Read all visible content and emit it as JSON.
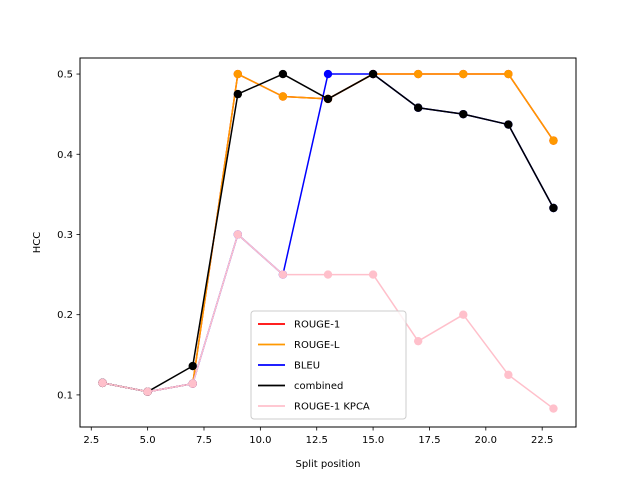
{
  "chart_data": {
    "type": "line",
    "title": "",
    "xlabel": "Split position",
    "ylabel": "HCC",
    "xlim": [
      2.0,
      24.0
    ],
    "ylim": [
      0.06,
      0.52
    ],
    "xticks": [
      2.5,
      5.0,
      7.5,
      10.0,
      12.5,
      15.0,
      17.5,
      20.0,
      22.5
    ],
    "xtick_labels": [
      "2.5",
      "5.0",
      "7.5",
      "10.0",
      "12.5",
      "15.0",
      "17.5",
      "20.0",
      "22.5"
    ],
    "yticks": [
      0.1,
      0.2,
      0.3,
      0.4,
      0.5
    ],
    "ytick_labels": [
      "0.1",
      "0.2",
      "0.3",
      "0.4",
      "0.5"
    ],
    "grid": false,
    "legend_position": "lower center",
    "x": [
      3,
      5,
      7,
      9,
      11,
      13,
      15,
      17,
      19,
      21,
      23
    ],
    "series": [
      {
        "name": "ROUGE-1",
        "color": "#ff0000",
        "values": [
          0.115,
          0.104,
          0.114,
          0.5,
          0.472,
          0.469,
          0.5,
          0.5,
          0.5,
          0.5,
          0.417
        ]
      },
      {
        "name": "ROUGE-L",
        "color": "#ff9900",
        "values": [
          0.115,
          0.104,
          0.114,
          0.5,
          0.472,
          0.469,
          0.5,
          0.5,
          0.5,
          0.5,
          0.417
        ]
      },
      {
        "name": "BLEU",
        "color": "#0000ff",
        "values": [
          0.115,
          0.104,
          0.114,
          0.3,
          0.25,
          0.5,
          0.5,
          0.458,
          0.45,
          0.437,
          0.333
        ]
      },
      {
        "name": "combined",
        "color": "#000000",
        "values": [
          0.115,
          0.104,
          0.136,
          0.475,
          0.5,
          0.469,
          0.5,
          0.458,
          0.45,
          0.437,
          0.333
        ]
      },
      {
        "name": "ROUGE-1 KPCA",
        "color": "#ffc0cb",
        "values": [
          0.115,
          0.104,
          0.114,
          0.3,
          0.25,
          0.25,
          0.25,
          0.167,
          0.2,
          0.125,
          0.083
        ]
      }
    ]
  }
}
